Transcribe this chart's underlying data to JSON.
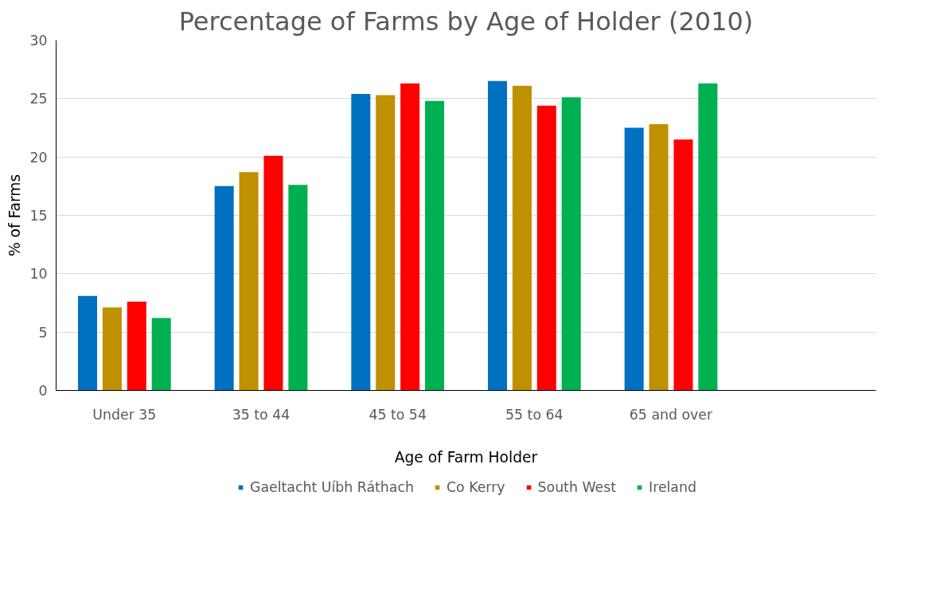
{
  "chart_data": {
    "type": "bar",
    "title": "Percentage of Farms by Age of Holder (2010)",
    "xlabel": "Age of Farm Holder",
    "ylabel": "% of Farms",
    "categories": [
      "Under 35",
      "35 to 44",
      "45 to 54",
      "55 to 64",
      "65 and over",
      null
    ],
    "series": [
      {
        "name": "Gaeltacht Uíbh Ráthach",
        "color": "#0070c0",
        "values": [
          8.1,
          17.5,
          25.4,
          26.5,
          22.5,
          null
        ]
      },
      {
        "name": "Co Kerry",
        "color": "#bf9000",
        "values": [
          7.1,
          18.7,
          25.3,
          26.1,
          22.8,
          null
        ]
      },
      {
        "name": "South West",
        "color": "#ff0000",
        "values": [
          7.6,
          20.1,
          26.3,
          24.4,
          21.5,
          null
        ]
      },
      {
        "name": "Ireland",
        "color": "#00b050",
        "values": [
          6.2,
          17.6,
          24.8,
          25.1,
          26.3,
          null
        ]
      }
    ],
    "ylim": [
      0,
      30
    ],
    "yticks": [
      0,
      5,
      10,
      15,
      20,
      25,
      30
    ],
    "grid": "y",
    "legend": "bottom"
  }
}
